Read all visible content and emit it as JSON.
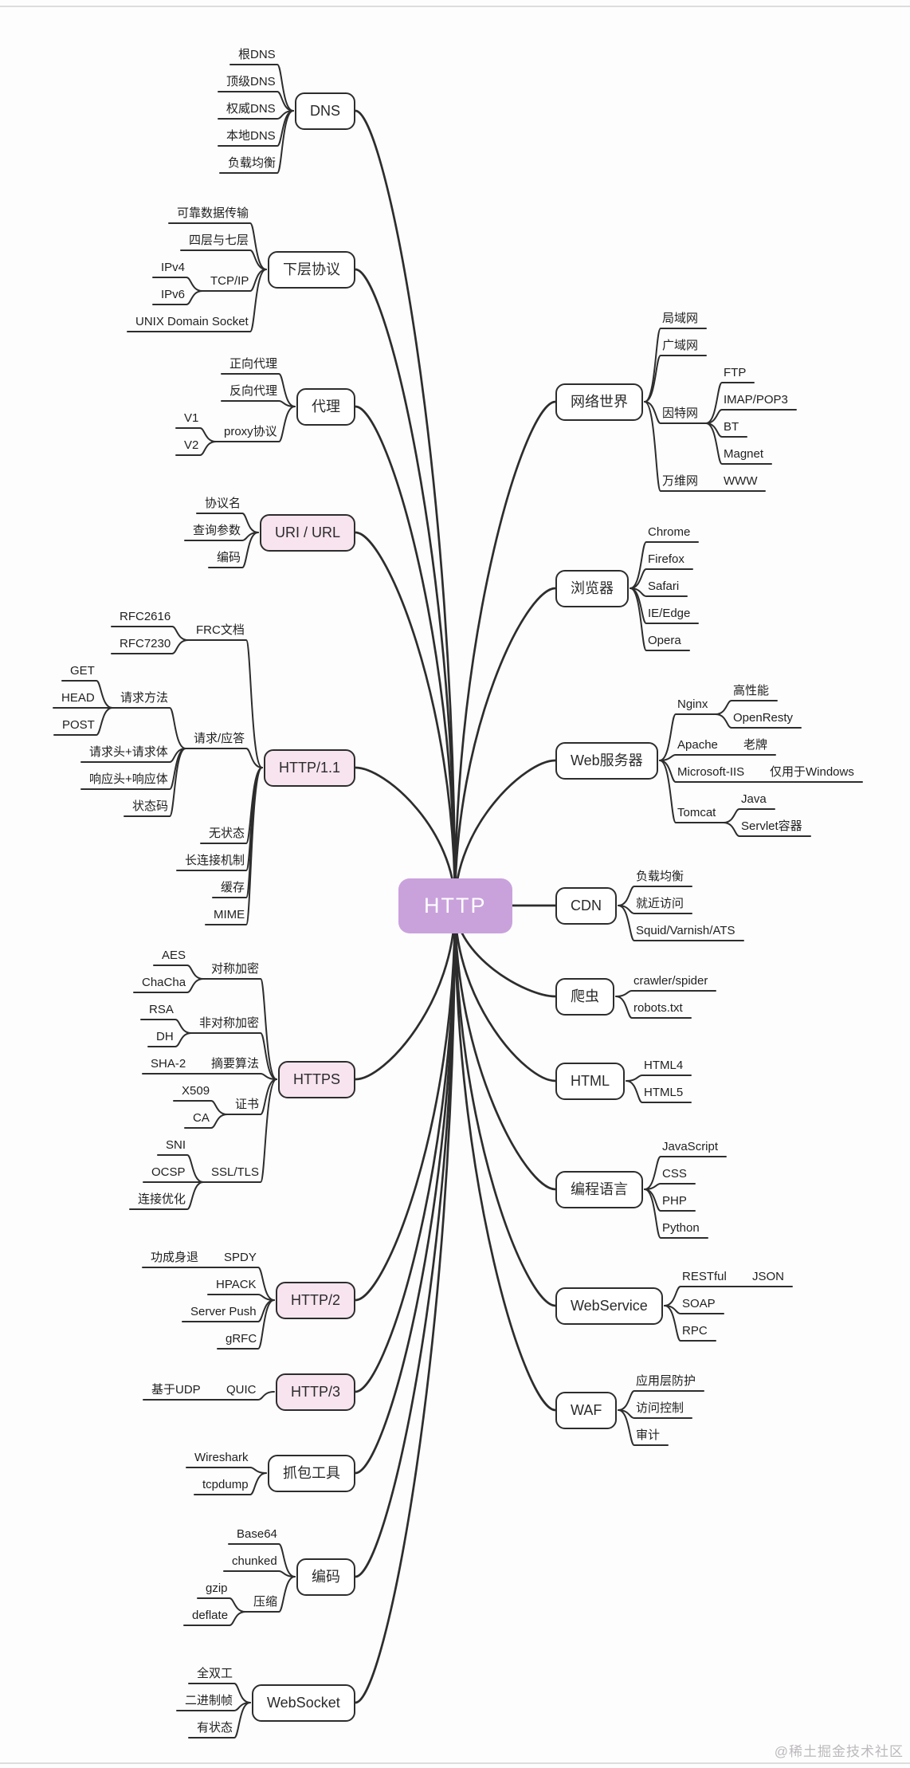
{
  "watermark": "@稀土掘金技术社区",
  "colors": {
    "background": "#fdfdfd",
    "line": "#2d2d2d",
    "text": "#1f1f1f",
    "node_fill": "#ffffff",
    "pink_fill": "#f7e4ef",
    "center_fill": "#c9a2dc",
    "center_text": "#ffffff",
    "watermark_text": "#bcb9bc",
    "edge_line": "#dddddd"
  },
  "map": {
    "root": {
      "label": "HTTP"
    },
    "left": [
      {
        "label": "DNS",
        "tint": "white",
        "children": [
          {
            "label": "根DNS"
          },
          {
            "label": "顶级DNS"
          },
          {
            "label": "权威DNS"
          },
          {
            "label": "本地DNS"
          },
          {
            "label": "负载均衡"
          }
        ]
      },
      {
        "label": "下层协议",
        "tint": "white",
        "children": [
          {
            "label": "可靠数据传输"
          },
          {
            "label": "四层与七层"
          },
          {
            "label": "TCP/IP",
            "children": [
              {
                "label": "IPv4"
              },
              {
                "label": "IPv6"
              }
            ]
          },
          {
            "label": "UNIX Domain Socket"
          }
        ]
      },
      {
        "label": "代理",
        "tint": "white",
        "children": [
          {
            "label": "正向代理"
          },
          {
            "label": "反向代理"
          },
          {
            "label": "proxy协议",
            "children": [
              {
                "label": "V1"
              },
              {
                "label": "V2"
              }
            ]
          }
        ]
      },
      {
        "label": "URI / URL",
        "tint": "pink",
        "children": [
          {
            "label": "协议名"
          },
          {
            "label": "查询参数"
          },
          {
            "label": "编码"
          }
        ]
      },
      {
        "label": "HTTP/1.1",
        "tint": "pink",
        "children": [
          {
            "label": "FRC文档",
            "children": [
              {
                "label": "RFC2616"
              },
              {
                "label": "RFC7230"
              }
            ]
          },
          {
            "label": "请求/应答",
            "children": [
              {
                "label": "请求方法",
                "children": [
                  {
                    "label": "GET"
                  },
                  {
                    "label": "HEAD"
                  },
                  {
                    "label": "POST"
                  }
                ]
              },
              {
                "label": "请求头+请求体"
              },
              {
                "label": "响应头+响应体"
              },
              {
                "label": "状态码"
              }
            ]
          },
          {
            "label": "无状态"
          },
          {
            "label": "长连接机制"
          },
          {
            "label": "缓存"
          },
          {
            "label": "MIME"
          }
        ]
      },
      {
        "label": "HTTPS",
        "tint": "pink",
        "children": [
          {
            "label": "对称加密",
            "children": [
              {
                "label": "AES"
              },
              {
                "label": "ChaCha"
              }
            ]
          },
          {
            "label": "非对称加密",
            "children": [
              {
                "label": "RSA"
              },
              {
                "label": "DH"
              }
            ]
          },
          {
            "label": "摘要算法",
            "children": [
              {
                "label": "SHA-2"
              }
            ]
          },
          {
            "label": "证书",
            "children": [
              {
                "label": "X509"
              },
              {
                "label": "CA"
              }
            ]
          },
          {
            "label": "SSL/TLS",
            "children": [
              {
                "label": "SNI"
              },
              {
                "label": "OCSP"
              },
              {
                "label": "连接优化"
              }
            ]
          }
        ]
      },
      {
        "label": "HTTP/2",
        "tint": "pink",
        "children": [
          {
            "label": "SPDY",
            "children": [
              {
                "label": "功成身退"
              }
            ]
          },
          {
            "label": "HPACK"
          },
          {
            "label": "Server Push"
          },
          {
            "label": "gRFC"
          }
        ]
      },
      {
        "label": "HTTP/3",
        "tint": "pink",
        "children": [
          {
            "label": "QUIC",
            "children": [
              {
                "label": "基于UDP"
              }
            ]
          }
        ]
      },
      {
        "label": "抓包工具",
        "tint": "white",
        "children": [
          {
            "label": "Wireshark"
          },
          {
            "label": "tcpdump"
          }
        ]
      },
      {
        "label": "编码",
        "tint": "white",
        "children": [
          {
            "label": "Base64"
          },
          {
            "label": "chunked"
          },
          {
            "label": "压缩",
            "children": [
              {
                "label": "gzip"
              },
              {
                "label": "deflate"
              }
            ]
          }
        ]
      },
      {
        "label": "WebSocket",
        "tint": "white",
        "children": [
          {
            "label": "全双工"
          },
          {
            "label": "二进制帧"
          },
          {
            "label": "有状态"
          }
        ]
      }
    ],
    "right": [
      {
        "label": "网络世界",
        "tint": "white",
        "children": [
          {
            "label": "局域网"
          },
          {
            "label": "广域网"
          },
          {
            "label": "因特网",
            "children": [
              {
                "label": "FTP"
              },
              {
                "label": "IMAP/POP3"
              },
              {
                "label": "BT"
              },
              {
                "label": "Magnet"
              }
            ]
          },
          {
            "label": "万维网",
            "children": [
              {
                "label": "WWW"
              }
            ]
          }
        ]
      },
      {
        "label": "浏览器",
        "tint": "white",
        "children": [
          {
            "label": "Chrome"
          },
          {
            "label": "Firefox"
          },
          {
            "label": "Safari"
          },
          {
            "label": "IE/Edge"
          },
          {
            "label": "Opera"
          }
        ]
      },
      {
        "label": "Web服务器",
        "tint": "white",
        "children": [
          {
            "label": "Nginx",
            "children": [
              {
                "label": "高性能"
              },
              {
                "label": "OpenResty"
              }
            ]
          },
          {
            "label": "Apache",
            "children": [
              {
                "label": "老牌"
              }
            ]
          },
          {
            "label": "Microsoft-IIS",
            "children": [
              {
                "label": "仅用于Windows"
              }
            ]
          },
          {
            "label": "Tomcat",
            "children": [
              {
                "label": "Java"
              },
              {
                "label": "Servlet容器"
              }
            ]
          }
        ]
      },
      {
        "label": "CDN",
        "tint": "white",
        "children": [
          {
            "label": "负载均衡"
          },
          {
            "label": "就近访问"
          },
          {
            "label": "Squid/Varnish/ATS"
          }
        ]
      },
      {
        "label": "爬虫",
        "tint": "white",
        "children": [
          {
            "label": "crawler/spider"
          },
          {
            "label": "robots.txt"
          }
        ]
      },
      {
        "label": "HTML",
        "tint": "white",
        "children": [
          {
            "label": "HTML4"
          },
          {
            "label": "HTML5"
          }
        ]
      },
      {
        "label": "编程语言",
        "tint": "white",
        "children": [
          {
            "label": "JavaScript"
          },
          {
            "label": "CSS"
          },
          {
            "label": "PHP"
          },
          {
            "label": "Python"
          }
        ]
      },
      {
        "label": "WebService",
        "tint": "white",
        "children": [
          {
            "label": "RESTful",
            "children": [
              {
                "label": "JSON"
              }
            ]
          },
          {
            "label": "SOAP"
          },
          {
            "label": "RPC"
          }
        ]
      },
      {
        "label": "WAF",
        "tint": "white",
        "children": [
          {
            "label": "应用层防护"
          },
          {
            "label": "访问控制"
          },
          {
            "label": "审计"
          }
        ]
      }
    ]
  }
}
